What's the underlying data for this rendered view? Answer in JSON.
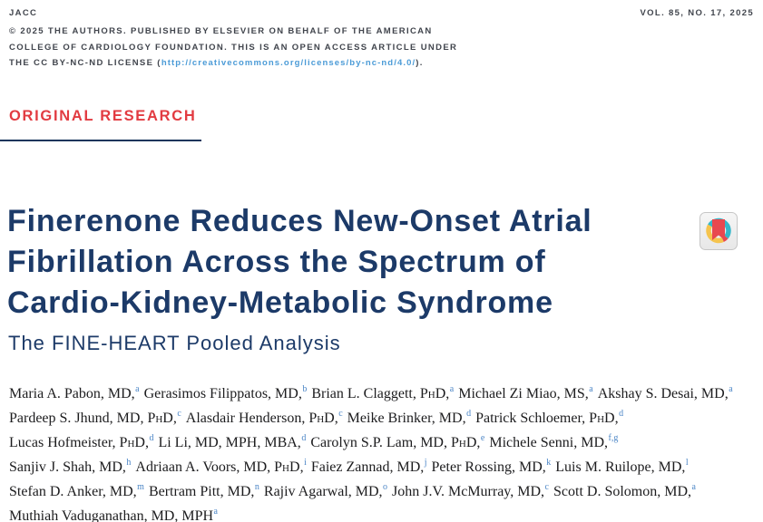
{
  "header": {
    "journal": "JACC",
    "volume": "VOL. 85, NO. 17, 2025",
    "copyright_line1": "© 2025 THE AUTHORS. PUBLISHED BY ELSEVIER ON BEHALF OF THE AMERICAN",
    "copyright_line2": "COLLEGE OF CARDIOLOGY FOUNDATION. THIS IS AN OPEN ACCESS ARTICLE UNDER",
    "license_prefix": "THE CC BY-NC-ND LICENSE (",
    "license_url": "http://creativecommons.org/licenses/by-nc-nd/4.0/",
    "license_suffix": ")."
  },
  "section": {
    "label": "ORIGINAL RESEARCH"
  },
  "article": {
    "title_lines": [
      "Finerenone Reduces New-Onset Atrial",
      "Fibrillation Across the Spectrum of",
      "Cardio-Kidney-Metabolic Syndrome"
    ],
    "subtitle": "The FINE-HEART Pooled Analysis"
  },
  "badge": {
    "icon": "bookmark-ring-badge",
    "colors": {
      "teal": "#35b7ca",
      "yellow": "#f5c44e",
      "red": "#e8484f",
      "background": "#f2f2f2",
      "border": "#c6c6c6"
    }
  },
  "authors": {
    "lines": [
      [
        {
          "name": "Maria A. Pabon, MD,",
          "sup": "a"
        },
        {
          "name": "Gerasimos Filippatos, MD,",
          "sup": "b"
        },
        {
          "name": "Brian L. Claggett, PhD,",
          "sup": "a"
        },
        {
          "name": "Michael Zi Miao, MS,",
          "sup": "a"
        },
        {
          "name": "Akshay S. Desai, MD,",
          "sup": "a"
        }
      ],
      [
        {
          "name": "Pardeep S. Jhund, MD, PhD,",
          "sup": "c"
        },
        {
          "name": "Alasdair Henderson, PhD,",
          "sup": "c"
        },
        {
          "name": "Meike Brinker, MD,",
          "sup": "d"
        },
        {
          "name": "Patrick Schloemer, PhD,",
          "sup": "d"
        }
      ],
      [
        {
          "name": "Lucas Hofmeister, PhD,",
          "sup": "d"
        },
        {
          "name": "Li Li, MD, MPH, MBA,",
          "sup": "d"
        },
        {
          "name": "Carolyn S.P. Lam, MD, PhD,",
          "sup": "e"
        },
        {
          "name": "Michele Senni, MD,",
          "sup": "f,g"
        }
      ],
      [
        {
          "name": "Sanjiv J. Shah, MD,",
          "sup": "h"
        },
        {
          "name": "Adriaan A. Voors, MD, PhD,",
          "sup": "i"
        },
        {
          "name": "Faiez Zannad, MD,",
          "sup": "j"
        },
        {
          "name": "Peter Rossing, MD,",
          "sup": "k"
        },
        {
          "name": "Luis M. Ruilope, MD,",
          "sup": "l"
        }
      ],
      [
        {
          "name": "Stefan D. Anker, MD,",
          "sup": "m"
        },
        {
          "name": "Bertram Pitt, MD,",
          "sup": "n"
        },
        {
          "name": "Rajiv Agarwal, MD,",
          "sup": "o"
        },
        {
          "name": "John J.V. McMurray, MD,",
          "sup": "c"
        },
        {
          "name": "Scott D. Solomon, MD,",
          "sup": "a"
        }
      ],
      [
        {
          "name": "Muthiah Vaduganathan, MD, MPH",
          "sup": "a"
        }
      ]
    ]
  },
  "colors": {
    "accent_red": "#e23b41",
    "navy": "#1c3a68",
    "rule_navy": "#16355c",
    "link_blue": "#4b9bd7",
    "sup_blue": "#4c86c6",
    "topmatter_gray": "#41454d"
  }
}
